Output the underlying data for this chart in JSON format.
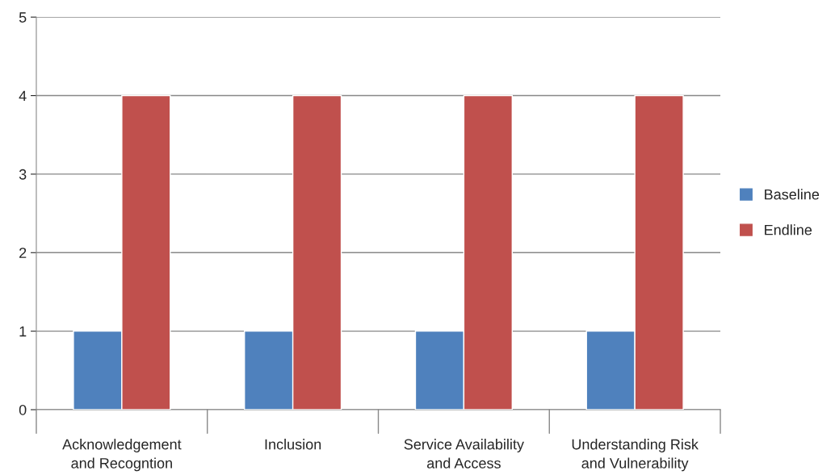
{
  "chart_data": {
    "type": "bar",
    "categories": [
      "Acknowledgement\nand Recogntion",
      "Inclusion",
      "Service Availability\nand Access",
      "Understanding Risk\nand Vulnerability"
    ],
    "series": [
      {
        "name": "Baseline",
        "color": "#4f81bd",
        "values": [
          1,
          1,
          1,
          1
        ]
      },
      {
        "name": "Endline",
        "color": "#c0504d",
        "values": [
          4,
          4,
          4,
          4
        ]
      }
    ],
    "ylim": [
      0,
      5
    ],
    "yticks": [
      0,
      1,
      2,
      3,
      4,
      5
    ],
    "grid": "y",
    "legend": "right"
  }
}
